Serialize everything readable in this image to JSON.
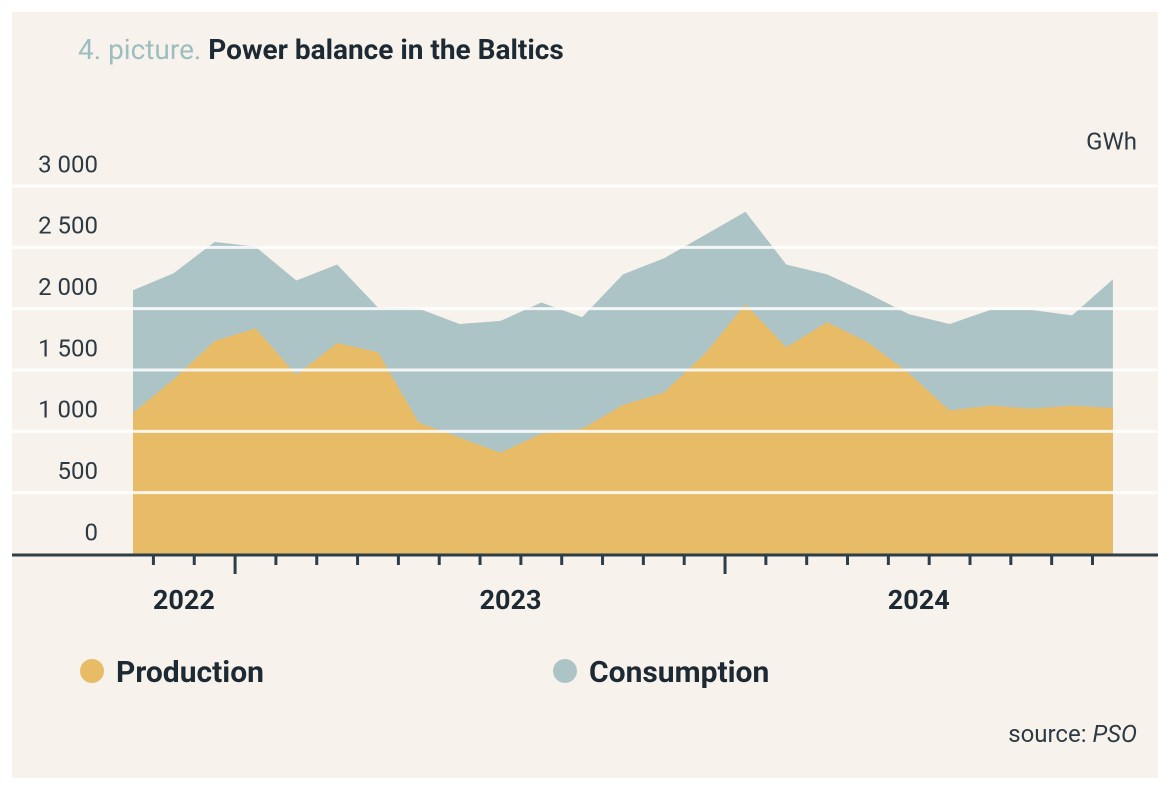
{
  "chart_data": {
    "type": "area",
    "title_prefix": "4. picture.",
    "title": "Power balance in the Baltics",
    "unit": "GWh",
    "source_label": "source:",
    "source": "PSO",
    "categories": [
      null,
      "2022",
      null,
      null,
      null,
      null,
      null,
      null,
      null,
      "2023",
      null,
      null,
      null,
      null,
      null,
      null,
      null,
      null,
      null,
      "2024",
      null,
      null,
      null,
      null,
      null
    ],
    "series": [
      {
        "name": "Production",
        "color": "#e8bb66",
        "values": [
          1150,
          1425,
          1735,
          1840,
          1460,
          1720,
          1645,
          1070,
          950,
          825,
          980,
          1020,
          1215,
          1315,
          1630,
          2035,
          1685,
          1890,
          1725,
          1475,
          1170,
          1210,
          1185,
          1210,
          1190
        ]
      },
      {
        "name": "Consumption",
        "color": "#adc4c7",
        "values": [
          2150,
          2290,
          2545,
          2505,
          2230,
          2360,
          2010,
          2000,
          1875,
          1900,
          2050,
          1930,
          2280,
          2410,
          2600,
          2790,
          2360,
          2280,
          2125,
          1955,
          1875,
          1990,
          1990,
          1945,
          2240
        ]
      }
    ],
    "ylim": [
      0,
      3000
    ],
    "yticks": [
      0,
      500,
      {
        "value": 1000,
        "label": "1 000"
      },
      {
        "value": 1500,
        "label": "1 500"
      },
      {
        "value": 2000,
        "label": "2 000"
      },
      {
        "value": 2500,
        "label": "2 500"
      },
      {
        "value": 3000,
        "label": "3 000"
      }
    ],
    "grid": true
  }
}
